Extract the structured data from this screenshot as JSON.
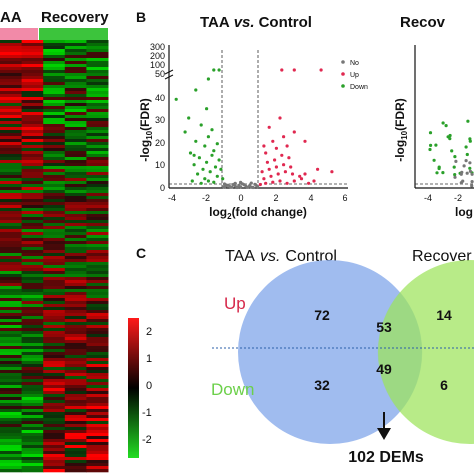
{
  "heatmap": {
    "group_labels": [
      "AA",
      "Recovery"
    ],
    "group_colors": [
      "#f28aa8",
      "#3cc43c"
    ],
    "colorbar_ticks": [
      "2",
      "1",
      "0",
      "-1",
      "-2"
    ],
    "colorbar_colors": [
      "#ff1a1a",
      "#000000",
      "#22dd22"
    ]
  },
  "panel_b": {
    "letter": "B",
    "title_left": "TAA",
    "title_vs": "vs.",
    "title_right": "Control",
    "second_title": "Recov",
    "ylabel_parts": [
      "-log",
      "10",
      "(FDR)"
    ],
    "xlabel_parts": [
      "log",
      "2",
      "(fold change)"
    ],
    "second_xlabel": "log",
    "y_ticks_upper": [
      "300",
      "200",
      "100",
      "50"
    ],
    "y_ticks_lower": [
      "40",
      "30",
      "20",
      "10",
      "0"
    ],
    "x_ticks": [
      "-4",
      "-2",
      "0",
      "2",
      "4",
      "6"
    ],
    "second_x_ticks": [
      "-4",
      "-2"
    ],
    "legend": [
      {
        "label": "No",
        "color": "#777777"
      },
      {
        "label": "Up",
        "color": "#e02850"
      },
      {
        "label": "Down",
        "color": "#2aa02a"
      }
    ]
  },
  "panel_c": {
    "letter": "C",
    "title_left": "TAA",
    "title_vs": "vs.",
    "title_right": "Control",
    "second_title": "Recover",
    "up_label": "Up",
    "down_label": "Down",
    "left_up": "72",
    "overlap_up": "53",
    "right_up": "14",
    "left_down": "32",
    "overlap_down": "49",
    "right_down": "6",
    "dems_label": "102 DEMs",
    "colors": {
      "left_circle": "#8fb0ec",
      "right_circle": "#a6e66a",
      "up": "#d6284a",
      "down": "#6cd04a"
    }
  },
  "chart_data": [
    {
      "type": "heatmap",
      "title": "",
      "columns": [
        "AA",
        "AA",
        "Recovery",
        "Recovery",
        "Recovery"
      ],
      "color_range": [
        -2,
        2
      ]
    },
    {
      "type": "scatter",
      "title": "TAA vs. Control",
      "xlabel": "log2(fold change)",
      "ylabel": "-log10(FDR)",
      "xlim": [
        -4,
        6
      ],
      "ylim": [
        0,
        45
      ],
      "series": [
        {
          "name": "Down",
          "points": [
            [
              -2.2,
              2
            ],
            [
              -1.8,
              3
            ],
            [
              -1.5,
              2.5
            ],
            [
              -2.0,
              4
            ],
            [
              -1.3,
              5
            ],
            [
              -2.4,
              6
            ],
            [
              -1.7,
              7
            ],
            [
              -2.1,
              8
            ],
            [
              -1.4,
              9
            ],
            [
              -2.6,
              10
            ],
            [
              -1.9,
              11
            ],
            [
              -1.2,
              12
            ],
            [
              -2.3,
              13
            ],
            [
              -1.6,
              14
            ],
            [
              -2.8,
              15
            ],
            [
              -1.5,
              16
            ],
            [
              -2.0,
              18
            ],
            [
              -1.3,
              19
            ],
            [
              -2.5,
              20
            ],
            [
              -1.8,
              22
            ],
            [
              -3.1,
              24
            ],
            [
              -1.6,
              25
            ],
            [
              -2.2,
              27
            ],
            [
              -2.9,
              30
            ],
            [
              -1.9,
              34
            ],
            [
              -3.6,
              38
            ],
            [
              -2.5,
              42
            ],
            [
              -1.8,
              46
            ],
            [
              -1.5,
              47
            ],
            [
              -1.2,
              47
            ],
            [
              -2.6,
              14
            ],
            [
              -1.1,
              8
            ],
            [
              -1.0,
              4
            ],
            [
              -2.7,
              3
            ]
          ]
        },
        {
          "name": "Up",
          "points": [
            [
              1.1,
              1.5
            ],
            [
              1.4,
              2
            ],
            [
              1.8,
              2.5
            ],
            [
              2.2,
              3
            ],
            [
              2.6,
              2
            ],
            [
              3.0,
              3
            ],
            [
              3.4,
              4
            ],
            [
              1.3,
              4
            ],
            [
              1.7,
              5
            ],
            [
              2.1,
              6
            ],
            [
              2.5,
              7
            ],
            [
              2.9,
              6
            ],
            [
              3.3,
              5
            ],
            [
              1.2,
              7
            ],
            [
              1.6,
              8
            ],
            [
              2.0,
              9
            ],
            [
              2.4,
              10
            ],
            [
              2.8,
              9
            ],
            [
              1.5,
              11
            ],
            [
              1.9,
              12
            ],
            [
              2.3,
              14
            ],
            [
              2.7,
              13
            ],
            [
              1.4,
              15
            ],
            [
              2.0,
              17
            ],
            [
              2.6,
              18
            ],
            [
              1.8,
              20
            ],
            [
              2.4,
              22
            ],
            [
              3.0,
              24
            ],
            [
              1.6,
              26
            ],
            [
              2.2,
              30
            ],
            [
              4.3,
              8
            ],
            [
              3.8,
              2
            ],
            [
              4.1,
              3
            ],
            [
              3.6,
              6
            ],
            [
              2.3,
              47
            ],
            [
              3.0,
              47
            ],
            [
              4.5,
              47
            ],
            [
              3.6,
              20
            ],
            [
              5.1,
              7
            ],
            [
              1.3,
              18
            ]
          ]
        },
        {
          "name": "No",
          "points": [
            [
              -0.9,
              0.3
            ],
            [
              -0.6,
              0.6
            ],
            [
              -0.3,
              0.8
            ],
            [
              0,
              0.5
            ],
            [
              0.3,
              0.7
            ],
            [
              0.6,
              0.4
            ],
            [
              0.9,
              0.9
            ],
            [
              -0.7,
              1.2
            ],
            [
              -0.4,
              1.5
            ],
            [
              -0.1,
              1.1
            ],
            [
              0.2,
              1.4
            ],
            [
              0.5,
              1.0
            ],
            [
              0.8,
              1.6
            ],
            [
              -0.8,
              0.9
            ],
            [
              -0.2,
              0.2
            ],
            [
              0.4,
              0.3
            ],
            [
              0.7,
              0.2
            ],
            [
              -0.5,
              0.4
            ],
            [
              0.1,
              1.8
            ],
            [
              -0.3,
              2.0
            ],
            [
              0.6,
              2.1
            ],
            [
              -0.9,
              1.7
            ],
            [
              0.95,
              0.6
            ],
            [
              -0.95,
              0.5
            ],
            [
              0.0,
              2.4
            ]
          ]
        }
      ]
    },
    {
      "type": "venn",
      "sets": [
        "TAA vs. Control",
        "Recover"
      ],
      "up": {
        "left_only": 72,
        "overlap": 53,
        "right_only": 14
      },
      "down": {
        "left_only": 32,
        "overlap": 49,
        "right_only": 6
      },
      "overlap_total": "102 DEMs"
    }
  ]
}
